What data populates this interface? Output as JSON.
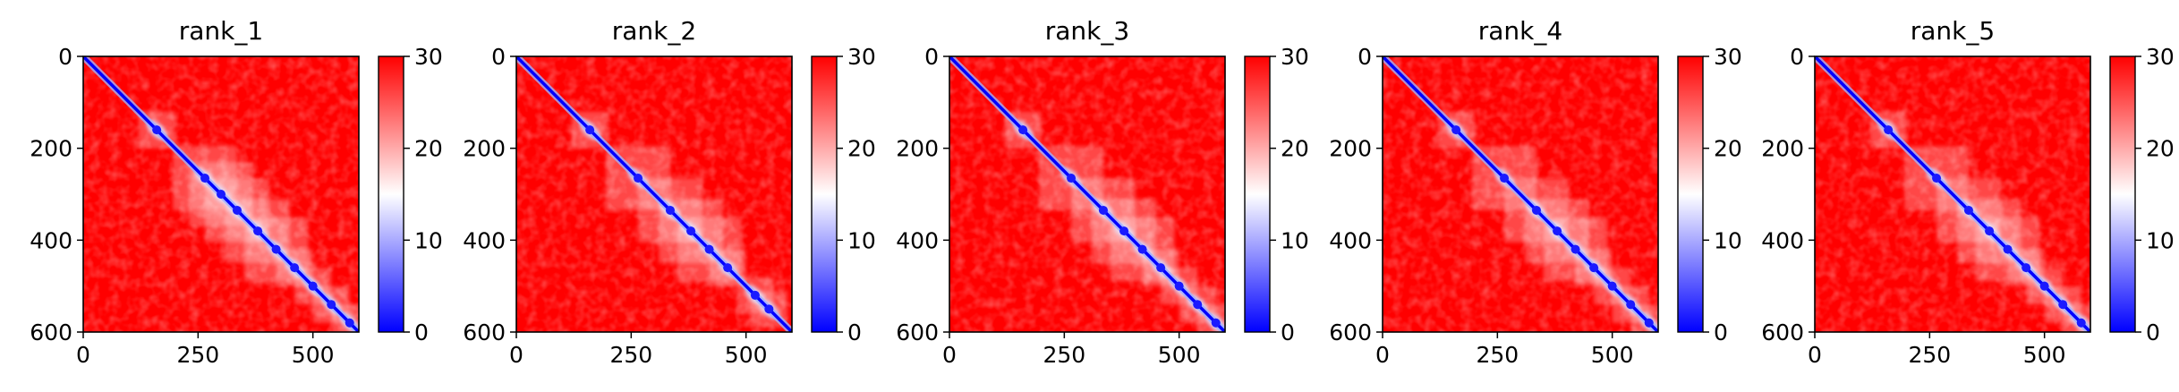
{
  "chart_data": [
    {
      "type": "heatmap",
      "title": "rank_1",
      "xlim": [
        0,
        600
      ],
      "ylim": [
        600,
        0
      ],
      "xticks": [
        "0",
        "250",
        "500"
      ],
      "yticks": [
        "0",
        "200",
        "400",
        "600"
      ],
      "colorbar": {
        "range": [
          0,
          30
        ],
        "ticks": [
          "0",
          "10",
          "20",
          "30"
        ],
        "colors": [
          "#0000ff",
          "#ffffff",
          "#ff0000"
        ]
      },
      "diagonal_blobs": [
        160,
        265,
        300,
        335,
        380,
        420,
        460,
        500,
        540,
        580
      ],
      "background_value": 30,
      "diagonal_value": 0
    },
    {
      "type": "heatmap",
      "title": "rank_2",
      "xlim": [
        0,
        600
      ],
      "ylim": [
        600,
        0
      ],
      "xticks": [
        "0",
        "250",
        "500"
      ],
      "yticks": [
        "0",
        "200",
        "400",
        "600"
      ],
      "colorbar": {
        "range": [
          0,
          30
        ],
        "ticks": [
          "0",
          "10",
          "20",
          "30"
        ],
        "colors": [
          "#0000ff",
          "#ffffff",
          "#ff0000"
        ]
      },
      "diagonal_blobs": [
        160,
        265,
        335,
        380,
        420,
        460,
        520,
        550
      ],
      "background_value": 30,
      "diagonal_value": 0
    },
    {
      "type": "heatmap",
      "title": "rank_3",
      "xlim": [
        0,
        600
      ],
      "ylim": [
        600,
        0
      ],
      "xticks": [
        "0",
        "250",
        "500"
      ],
      "yticks": [
        "0",
        "200",
        "400",
        "600"
      ],
      "colorbar": {
        "range": [
          0,
          30
        ],
        "ticks": [
          "0",
          "10",
          "20",
          "30"
        ],
        "colors": [
          "#0000ff",
          "#ffffff",
          "#ff0000"
        ]
      },
      "diagonal_blobs": [
        160,
        265,
        335,
        380,
        420,
        460,
        500,
        540,
        580
      ],
      "background_value": 30,
      "diagonal_value": 0
    },
    {
      "type": "heatmap",
      "title": "rank_4",
      "xlim": [
        0,
        600
      ],
      "ylim": [
        600,
        0
      ],
      "xticks": [
        "0",
        "250",
        "500"
      ],
      "yticks": [
        "0",
        "200",
        "400",
        "600"
      ],
      "colorbar": {
        "range": [
          0,
          30
        ],
        "ticks": [
          "0",
          "10",
          "20",
          "30"
        ],
        "colors": [
          "#0000ff",
          "#ffffff",
          "#ff0000"
        ]
      },
      "diagonal_blobs": [
        160,
        265,
        335,
        380,
        420,
        460,
        500,
        540,
        580
      ],
      "background_value": 30,
      "diagonal_value": 0
    },
    {
      "type": "heatmap",
      "title": "rank_5",
      "xlim": [
        0,
        600
      ],
      "ylim": [
        600,
        0
      ],
      "xticks": [
        "0",
        "250",
        "500"
      ],
      "yticks": [
        "0",
        "200",
        "400",
        "600"
      ],
      "colorbar": {
        "range": [
          0,
          30
        ],
        "ticks": [
          "0",
          "10",
          "20",
          "30"
        ],
        "colors": [
          "#0000ff",
          "#ffffff",
          "#ff0000"
        ]
      },
      "diagonal_blobs": [
        160,
        265,
        335,
        380,
        420,
        460,
        500,
        540,
        580
      ],
      "background_value": 30,
      "diagonal_value": 0
    }
  ]
}
